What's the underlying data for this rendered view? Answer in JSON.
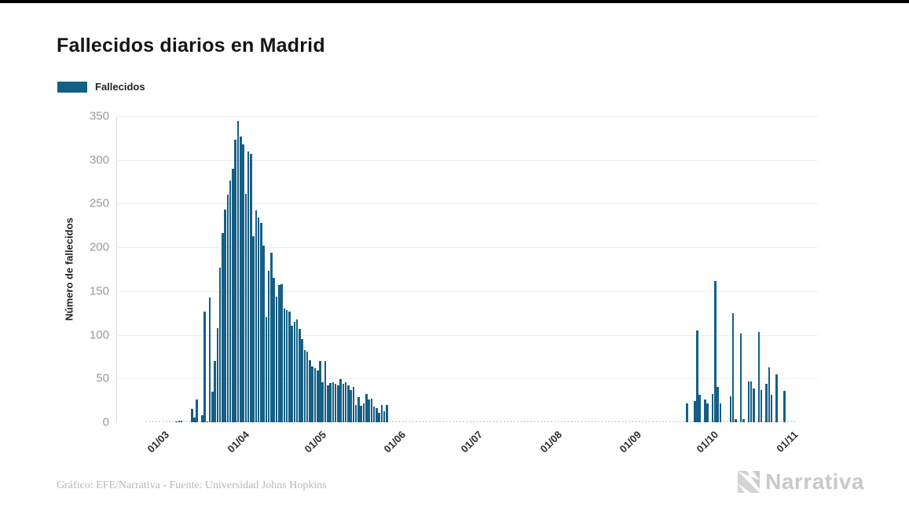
{
  "page": {
    "background": "#ffffff",
    "top_edge_color": "#000000"
  },
  "header": {
    "title": "Fallecidos diarios en Madrid"
  },
  "legend": {
    "label": "Fallecidos",
    "swatch_color": "#155f85"
  },
  "footer": {
    "credit": "Gráfico: EFE/Narrativa - Fuente: Universidad Johns Hopkins",
    "brand": "Narrativa"
  },
  "chart_data": {
    "type": "bar",
    "title": "Fallecidos diarios en Madrid",
    "series_name": "Fallecidos",
    "ylabel": "Número de fallecidos",
    "xlabel": "",
    "bar_color": "#155f85",
    "grid": true,
    "legend_position": "top-left",
    "ylim": [
      0,
      350
    ],
    "y_ticks": [
      0,
      50,
      100,
      150,
      200,
      250,
      300,
      350
    ],
    "x_tick_labels": [
      "01/03",
      "01/04",
      "01/05",
      "01/06",
      "01/07",
      "01/08",
      "01/09",
      "01/10",
      "01/11"
    ],
    "x_tick_day_offsets": [
      0,
      31,
      61,
      92,
      122,
      153,
      184,
      214,
      245
    ],
    "start_date": "01/03",
    "end_date": "31/10",
    "daily_values": [
      0,
      0,
      0,
      0,
      1,
      2,
      2,
      0,
      0,
      0,
      15,
      5,
      26,
      0,
      8,
      127,
      1,
      143,
      35,
      70,
      108,
      177,
      216,
      243,
      260,
      276,
      290,
      323,
      345,
      327,
      318,
      261,
      310,
      307,
      213,
      242,
      234,
      228,
      202,
      120,
      173,
      194,
      165,
      144,
      157,
      158,
      130,
      128,
      127,
      110,
      115,
      118,
      107,
      95,
      83,
      81,
      71,
      64,
      62,
      59,
      70,
      46,
      70,
      42,
      45,
      46,
      44,
      42,
      49,
      44,
      46,
      42,
      37,
      40,
      20,
      29,
      19,
      22,
      32,
      26,
      27,
      18,
      16,
      11,
      20,
      13,
      20,
      0,
      0,
      0,
      0,
      0,
      0,
      0,
      0,
      0,
      0,
      0,
      0,
      0,
      0,
      0,
      0,
      0,
      0,
      0,
      0,
      0,
      0,
      0,
      0,
      0,
      0,
      0,
      0,
      0,
      0,
      0,
      0,
      0,
      0,
      0,
      0,
      0,
      0,
      0,
      0,
      0,
      0,
      0,
      0,
      0,
      0,
      0,
      0,
      0,
      0,
      0,
      0,
      0,
      0,
      0,
      0,
      0,
      0,
      0,
      0,
      0,
      0,
      0,
      0,
      0,
      0,
      0,
      0,
      0,
      0,
      0,
      0,
      0,
      0,
      0,
      0,
      0,
      0,
      0,
      0,
      0,
      0,
      0,
      0,
      0,
      0,
      0,
      0,
      0,
      0,
      0,
      0,
      0,
      0,
      0,
      0,
      0,
      0,
      0,
      0,
      0,
      0,
      0,
      0,
      0,
      0,
      0,
      0,
      0,
      0,
      0,
      0,
      0,
      0,
      0,
      0,
      22,
      0,
      0,
      24,
      105,
      31,
      0,
      26,
      22,
      0,
      32,
      162,
      40,
      22,
      0,
      0,
      0,
      30,
      125,
      4,
      0,
      101,
      4,
      0,
      47,
      47,
      39,
      0,
      103,
      37,
      0,
      44,
      63,
      31,
      0,
      55,
      0,
      0,
      36,
      0,
      0,
      0
    ]
  }
}
